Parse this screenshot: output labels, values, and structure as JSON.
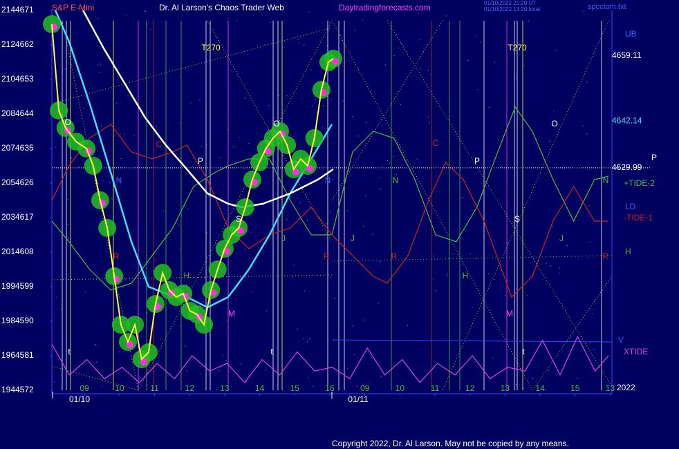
{
  "chart_data": {
    "type": "line",
    "title": "Dr. Al Larson's Chaos Trader Web",
    "symbol": "S&P E-Mini",
    "site": "Daytradingforecasts.com",
    "stamp_lines": [
      "01/10/2022 21:20 UT",
      "01/10/2022 13:20 local"
    ],
    "file_name": "spcctom.txt",
    "copyright": "Copyright 2022, Dr. Al Larson. May not be copied by any means.",
    "ylim": [
      4572,
      4671
    ],
    "yticks": [
      4572,
      4581,
      4590,
      4599,
      4608,
      4617,
      4626,
      4635,
      4644,
      4653,
      4662,
      4671
    ],
    "y_alt_ticks": [
      194,
      196,
      198,
      199,
      201,
      203,
      205,
      207,
      208,
      210,
      212,
      214
    ],
    "xlim": [
      8.07,
      24.05
    ],
    "xticks": [
      {
        "value": 9,
        "label": "09"
      },
      10,
      11,
      12,
      13,
      14,
      15,
      16,
      {
        "value": 17,
        "label": "09"
      },
      {
        "value": 18,
        "label": "10"
      },
      {
        "value": 19,
        "label": "11"
      },
      {
        "value": 20,
        "label": "12"
      },
      {
        "value": 21,
        "label": "13"
      },
      {
        "value": 22,
        "label": "14"
      },
      {
        "value": 23,
        "label": "15"
      },
      {
        "value": 24,
        "label": "13"
      }
    ],
    "date_labels": [
      "01/10",
      "01/11"
    ],
    "series": [
      {
        "color": "#ffff40",
        "x": [
          8.07,
          8.27,
          8.46,
          8.76,
          9.06,
          9.25,
          9.45,
          9.65,
          9.85,
          10.04,
          10.24,
          10.44,
          10.63,
          10.83,
          11.03,
          11.23,
          11.42,
          11.62,
          11.82,
          12.01,
          12.21,
          12.41,
          12.61,
          12.8,
          13.0,
          13.2,
          13.4,
          13.59,
          13.79,
          13.99,
          14.18,
          14.38,
          14.58,
          14.78,
          14.97,
          15.17,
          15.37,
          15.56,
          15.76,
          15.96,
          16.1
        ],
        "values": [
          4667.4,
          4644.9,
          4640.4,
          4636.8,
          4635,
          4630.5,
          4621.5,
          4614.3,
          4601.7,
          4589.1,
          4584.6,
          4589.1,
          4580.1,
          4581.9,
          4594.5,
          4602.6,
          4598.1,
          4596.3,
          4597.2,
          4592.7,
          4591.8,
          4589.1,
          4598.1,
          4603.5,
          4608.9,
          4612.5,
          4614.3,
          4619.7,
          4626.9,
          4631.4,
          4635,
          4637.7,
          4639.5,
          4635.9,
          4629.6,
          4632.3,
          4630.5,
          4637.7,
          4650.3,
          4657.5,
          4658.4
        ]
      },
      {
        "color": "#ffffff",
        "x": [
          8.96,
          9.55,
          10.14,
          10.73,
          11.32,
          11.92,
          12.51,
          13.1,
          13.49,
          14.09,
          14.87,
          15.66,
          16.1
        ],
        "values": [
          4671,
          4661.1,
          4652.1,
          4643.1,
          4635.9,
          4629.6,
          4623.3,
          4620.6,
          4619.7,
          4620.6,
          4623.3,
          4626.9,
          4629.6
        ]
      },
      {
        "color": "#40e0ff",
        "x": [
          8.17,
          8.56,
          9.15,
          9.75,
          10.34,
          10.83,
          11.32,
          11.92,
          12.51,
          13.1,
          13.69,
          14.28,
          14.87,
          15.47,
          16.06
        ],
        "values": [
          4671,
          4662.9,
          4646.7,
          4628.7,
          4610.7,
          4599,
          4597.2,
          4596.3,
          4593.6,
          4596.3,
          4603.5,
          4612.5,
          4623.3,
          4632.3,
          4641.3
        ]
      },
      {
        "name": "+TIDE-2",
        "color": "#40c040",
        "x": [
          8.07,
          8.56,
          9.15,
          9.75,
          10.34,
          10.93,
          11.52,
          12.11,
          12.71,
          13.1,
          13.69,
          14.28,
          14.87,
          15.47,
          16.06,
          16.65,
          17.24,
          17.83,
          18.43,
          19.02,
          19.61,
          20.2,
          20.79,
          21.29,
          21.78,
          22.37,
          22.96,
          23.55,
          23.95
        ],
        "values": [
          4616.1,
          4610.7,
          4603.5,
          4598.1,
          4599.9,
          4607.1,
          4614.3,
          4625.1,
          4628.7,
          4630.5,
          4632.3,
          4632.3,
          4621.5,
          4612.5,
          4612.5,
          4634.1,
          4639.5,
          4637.7,
          4626.9,
          4612.5,
          4610.7,
          4619.7,
          4634.1,
          4645.8,
          4639.5,
          4626.9,
          4616.1,
          4626.9,
          4627.8
        ]
      },
      {
        "name": "-TIDE-1",
        "color": "#d02020",
        "x": [
          8.07,
          8.56,
          9.15,
          9.75,
          10.34,
          10.93,
          11.52,
          11.92,
          12.51,
          13.1,
          13.69,
          14.28,
          14.87,
          15.47,
          16.06,
          16.65,
          17.24,
          17.64,
          18.23,
          18.82,
          19.31,
          19.81,
          20.4,
          21.19,
          21.78,
          22.37,
          22.96,
          23.55,
          23.95
        ],
        "values": [
          4621.5,
          4630.5,
          4637.7,
          4641.3,
          4634.1,
          4632.3,
          4634.1,
          4635.9,
          4626.9,
          4614.3,
          4608.9,
          4612.5,
          4614.3,
          4619.7,
          4612.5,
          4607.1,
          4601.7,
          4599.9,
          4607.1,
          4621.5,
          4631.4,
          4626.9,
          4616.1,
          4596.3,
          4601.7,
          4616.1,
          4625.1,
          4616.1,
          4616.1
        ]
      },
      {
        "name": "XTIDE",
        "color": "#e040e0",
        "x": [
          8.07,
          8.57,
          9.07,
          9.57,
          10.07,
          10.57,
          11.07,
          11.57,
          12.07,
          12.57,
          13.07,
          13.57,
          14.07,
          14.57,
          15.07,
          15.57,
          16.07,
          16.57,
          17.07,
          17.57,
          18.07,
          18.57,
          19.07,
          19.57,
          20.07,
          20.57,
          21.07,
          21.57,
          22.07,
          22.57,
          23.07,
          23.57,
          23.95
        ],
        "values": [
          4584,
          4576,
          4580,
          4575,
          4578,
          4574,
          4579,
          4575,
          4581,
          4577,
          4579,
          4574,
          4580,
          4576,
          4582,
          4577,
          4578,
          4575,
          4583,
          4576,
          4580,
          4574,
          4579,
          4576,
          4581,
          4575,
          4578,
          4577,
          4585,
          4576,
          4586,
          4577,
          4581
        ]
      }
    ],
    "levels": [
      {
        "value": 4659.11,
        "color": "#ffffff"
      },
      {
        "value": 4642.14,
        "color": "#40e0ff"
      },
      {
        "value": 4629.99,
        "color": "#ffffff"
      }
    ],
    "side_labels": [
      "UB",
      "P",
      "LD",
      "H",
      "V",
      "2022"
    ],
    "annotations": [
      "T270",
      "T270",
      "O",
      "O",
      "O",
      "P",
      "P",
      "N",
      "N",
      "N",
      "N",
      "C",
      "C",
      "S",
      "S",
      "J",
      "J",
      "J",
      "R",
      "R",
      "R",
      "R",
      "H",
      "H",
      "M",
      "M",
      "t",
      "t",
      "t"
    ]
  }
}
